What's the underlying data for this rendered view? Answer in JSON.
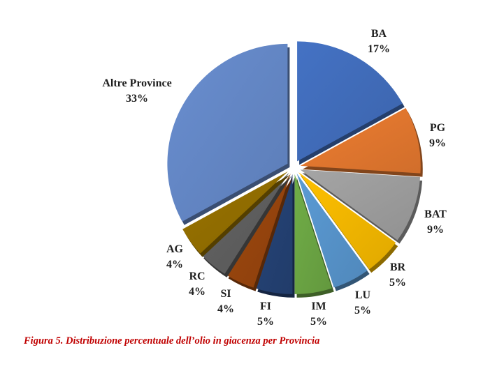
{
  "chart_data": {
    "type": "pie",
    "title": "",
    "slices": [
      {
        "label": "BA",
        "pct_label": "17%",
        "value": 17,
        "color": "#4472c4"
      },
      {
        "label": "PG",
        "pct_label": "9%",
        "value": 9,
        "color": "#ed7d31"
      },
      {
        "label": "BAT",
        "pct_label": "9%",
        "value": 9,
        "color": "#a5a5a5"
      },
      {
        "label": "BR",
        "pct_label": "5%",
        "value": 5,
        "color": "#ffc000"
      },
      {
        "label": "LU",
        "pct_label": "5%",
        "value": 5,
        "color": "#5b9bd5"
      },
      {
        "label": "IM",
        "pct_label": "5%",
        "value": 5,
        "color": "#70ad47"
      },
      {
        "label": "FI",
        "pct_label": "5%",
        "value": 5,
        "color": "#264478"
      },
      {
        "label": "SI",
        "pct_label": "4%",
        "value": 4,
        "color": "#9e480e"
      },
      {
        "label": "RC",
        "pct_label": "4%",
        "value": 4,
        "color": "#636363"
      },
      {
        "label": "AG",
        "pct_label": "4%",
        "value": 4,
        "color": "#997300"
      },
      {
        "label": "Altre Province",
        "pct_label": "33%",
        "value": 33,
        "color": "#698ed0"
      }
    ],
    "exploded": true,
    "legend": "none"
  },
  "caption": "Figura 5. Distribuzione percentuale dell’olio in giacenza per Provincia"
}
